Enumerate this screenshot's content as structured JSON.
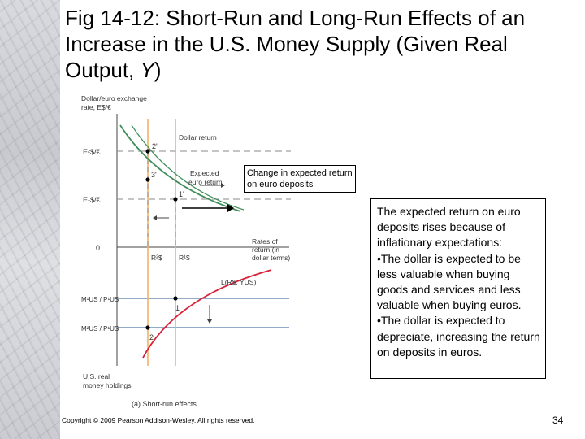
{
  "slide": {
    "title_main": "Fig 14-12: Short-Run and Long-Run Effects of an Increase in the U.S. Money Supply (Given Real Output, ",
    "title_var": "Y",
    "title_end": ")",
    "callout": "Change in expected return on euro deposits",
    "explanation": {
      "intro": "The expected return on euro deposits rises because of inflationary expectations:",
      "bullet1": "•The dollar is expected to be less valuable when buying goods and services and less valuable when buying euros.",
      "bullet2": "•The dollar is expected to depreciate, increasing the return on deposits in euros."
    },
    "copyright": "Copyright © 2009 Pearson Addison-Wesley. All rights reserved.",
    "page_number": "34"
  },
  "diagram": {
    "y_axis_label_1": "Dollar/euro exchange",
    "y_axis_label_2": "rate, E$/€",
    "e2_label": "E²$/€",
    "e1_label": "E¹$/€",
    "zero_label": "0",
    "m1_label": "M¹US / P¹US",
    "m2_label": "M²US / P¹US",
    "dollar_return_label": "Dollar return",
    "expected_return_label_1": "Expected",
    "expected_return_label_2": "euro return",
    "rates_label_1": "Rates of",
    "rates_label_2": "return (in",
    "rates_label_3": "dollar terms)",
    "r2_label": "R²$",
    "r1_label": "R¹$",
    "liquidity_label": "L(R$, YUS)",
    "x_axis_label_1": "U.S. real",
    "x_axis_label_2": "money holdings",
    "point_2p": "2'",
    "point_3p": "3'",
    "point_1p": "1'",
    "point_1": "1",
    "point_2": "2",
    "caption": "(a) Short-run effects",
    "colors": {
      "orange": "#f4b266",
      "green": "#3f8e5a",
      "red": "#d8223a",
      "blue": "#6f8fb4",
      "gray": "#8a8a8a"
    }
  }
}
